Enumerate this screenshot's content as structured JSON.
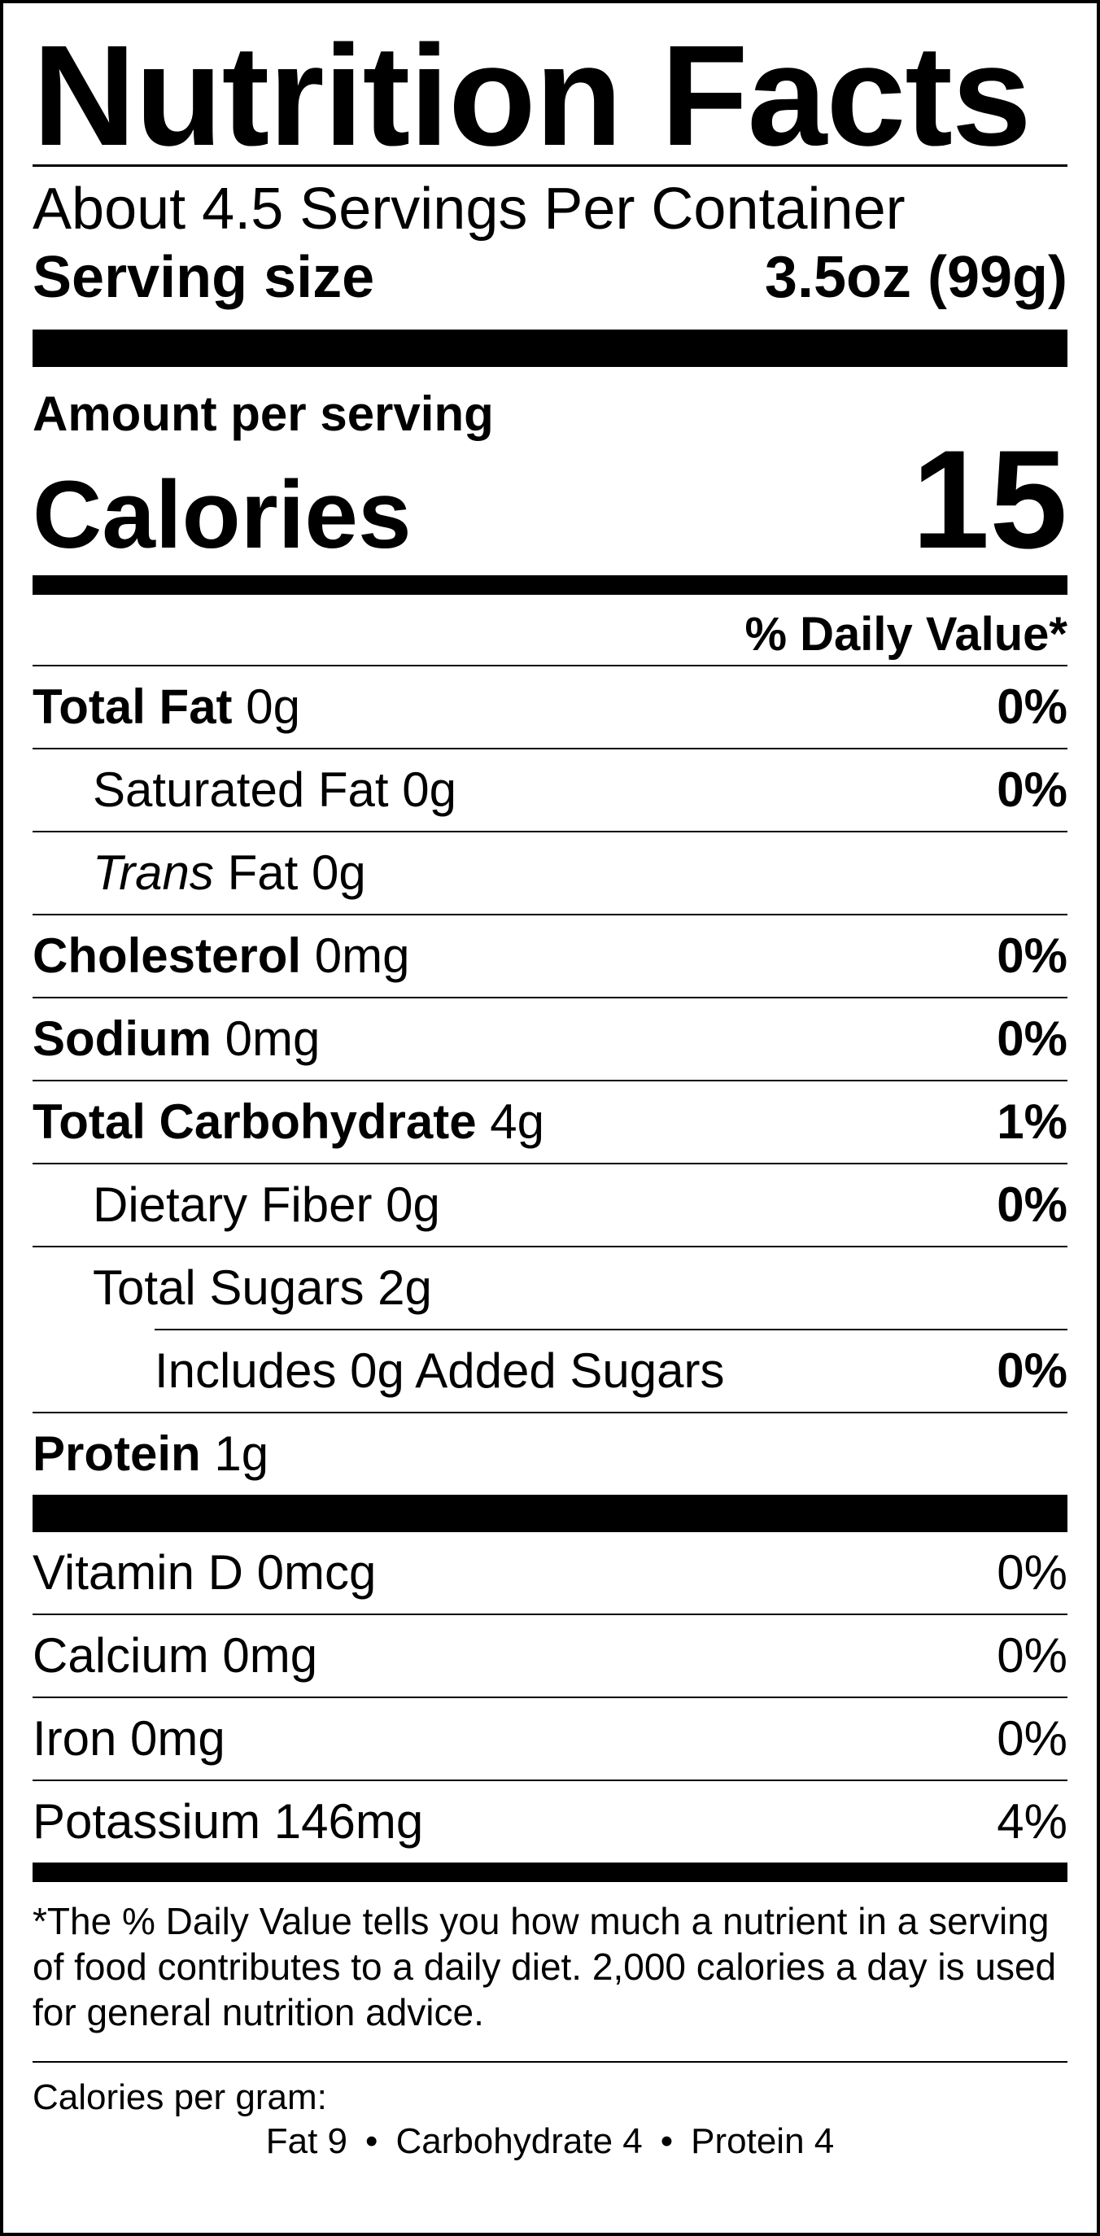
{
  "title": "Nutrition Facts",
  "servings_per_container": "About 4.5 Servings Per Container",
  "serving_size": {
    "label": "Serving size",
    "value": "3.5oz (99g)"
  },
  "amount_per_serving": "Amount per serving",
  "calories": {
    "label": "Calories",
    "value": "15"
  },
  "daily_value_header": "% Daily Value*",
  "nutrients": {
    "total_fat": {
      "name": "Total Fat",
      "amount": " 0g",
      "dv": "0%"
    },
    "saturated_fat": {
      "name": "Saturated Fat 0g",
      "dv": "0%"
    },
    "trans_fat": {
      "name_italic": "Trans",
      "rest": " Fat 0g"
    },
    "cholesterol": {
      "name": "Cholesterol",
      "amount": " 0mg",
      "dv": "0%"
    },
    "sodium": {
      "name": "Sodium",
      "amount": " 0mg",
      "dv": "0%"
    },
    "total_carbohydrate": {
      "name": "Total Carbohydrate",
      "amount": " 4g",
      "dv": "1%"
    },
    "dietary_fiber": {
      "name": "Dietary Fiber 0g",
      "dv": "0%"
    },
    "total_sugars": {
      "name": "Total Sugars 2g"
    },
    "added_sugars": {
      "name": "Includes 0g Added Sugars",
      "dv": "0%"
    },
    "protein": {
      "name": "Protein",
      "amount": " 1g"
    }
  },
  "vitamins": {
    "vitamin_d": {
      "name": "Vitamin D 0mcg",
      "dv": "0%"
    },
    "calcium": {
      "name": "Calcium 0mg",
      "dv": "0%"
    },
    "iron": {
      "name": "Iron 0mg",
      "dv": "0%"
    },
    "potassium": {
      "name": "Potassium 146mg",
      "dv": "4%"
    }
  },
  "footnote": "*The % Daily Value tells you how much a nutrient in a serving of food contributes to a daily diet. 2,000 calories a day is used for general nutrition advice.",
  "calories_per_gram": {
    "label": "Calories per gram:",
    "fat": "Fat 9",
    "bullet": "•",
    "carbohydrate": "Carbohydrate 4",
    "protein": "Protein 4"
  }
}
